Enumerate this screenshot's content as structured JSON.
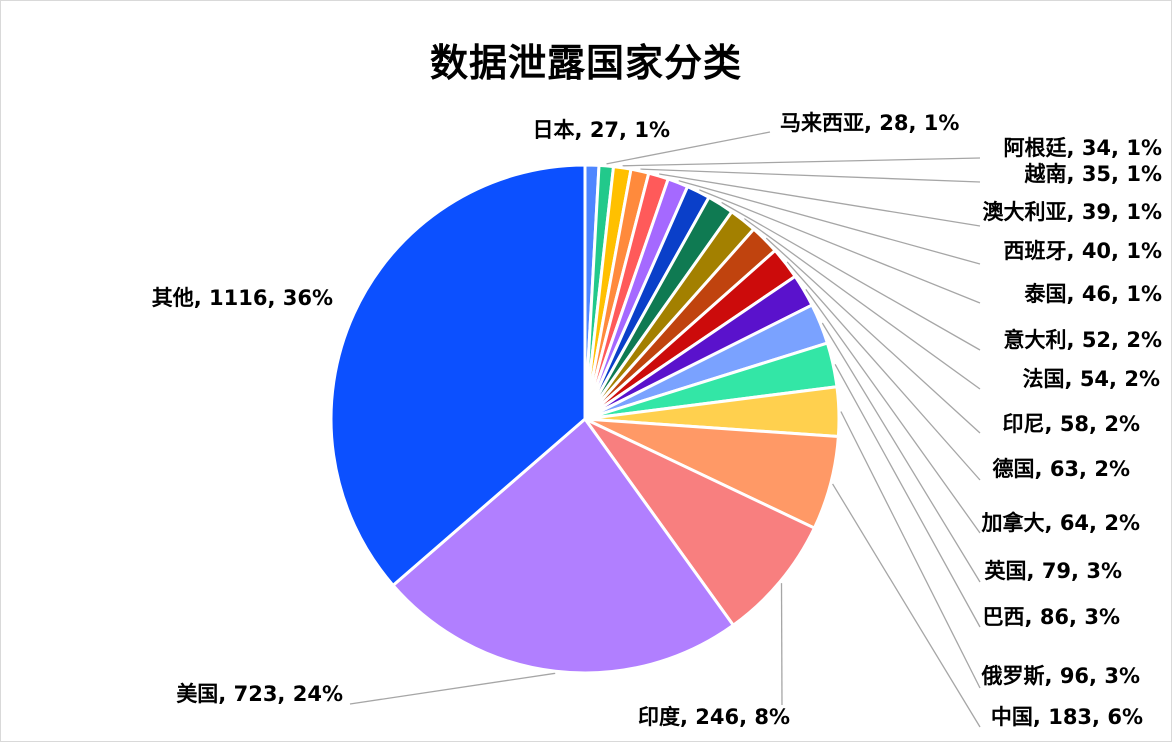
{
  "chart_data": {
    "type": "pie",
    "title": "数据泄露国家分类",
    "slices": [
      {
        "label": "日本",
        "value": 27,
        "percent": "1%",
        "color": "#4e86ff"
      },
      {
        "label": "马来西亚",
        "value": 28,
        "percent": "1%",
        "color": "#22c98b"
      },
      {
        "label": "阿根廷",
        "value": 34,
        "percent": "1%",
        "color": "#ffc000"
      },
      {
        "label": "越南",
        "value": 35,
        "percent": "1%",
        "color": "#ff8a3c"
      },
      {
        "label": "澳大利亚",
        "value": 39,
        "percent": "1%",
        "color": "#ff5a5a"
      },
      {
        "label": "西班牙",
        "value": 40,
        "percent": "1%",
        "color": "#a569ff"
      },
      {
        "label": "泰国",
        "value": 46,
        "percent": "1%",
        "color": "#0a3fc9"
      },
      {
        "label": "意大利",
        "value": 52,
        "percent": "2%",
        "color": "#0f7a52"
      },
      {
        "label": "法国",
        "value": 54,
        "percent": "2%",
        "color": "#a38000"
      },
      {
        "label": "印尼",
        "value": 58,
        "percent": "2%",
        "color": "#c0430e"
      },
      {
        "label": "德国",
        "value": 63,
        "percent": "2%",
        "color": "#cc0b0b"
      },
      {
        "label": "加拿大",
        "value": 64,
        "percent": "2%",
        "color": "#5a12cc"
      },
      {
        "label": "英国",
        "value": 79,
        "percent": "3%",
        "color": "#7aa2ff"
      },
      {
        "label": "巴西",
        "value": 86,
        "percent": "3%",
        "color": "#33e6a6"
      },
      {
        "label": "俄罗斯",
        "value": 96,
        "percent": "3%",
        "color": "#ffd04e"
      },
      {
        "label": "中国",
        "value": 183,
        "percent": "6%",
        "color": "#ff9966"
      },
      {
        "label": "印度",
        "value": 246,
        "percent": "8%",
        "color": "#f87f7f"
      },
      {
        "label": "美国",
        "value": 723,
        "percent": "24%",
        "color": "#b17fff"
      },
      {
        "label": "其他",
        "value": 1116,
        "percent": "36%",
        "color": "#0c50ff"
      }
    ]
  }
}
